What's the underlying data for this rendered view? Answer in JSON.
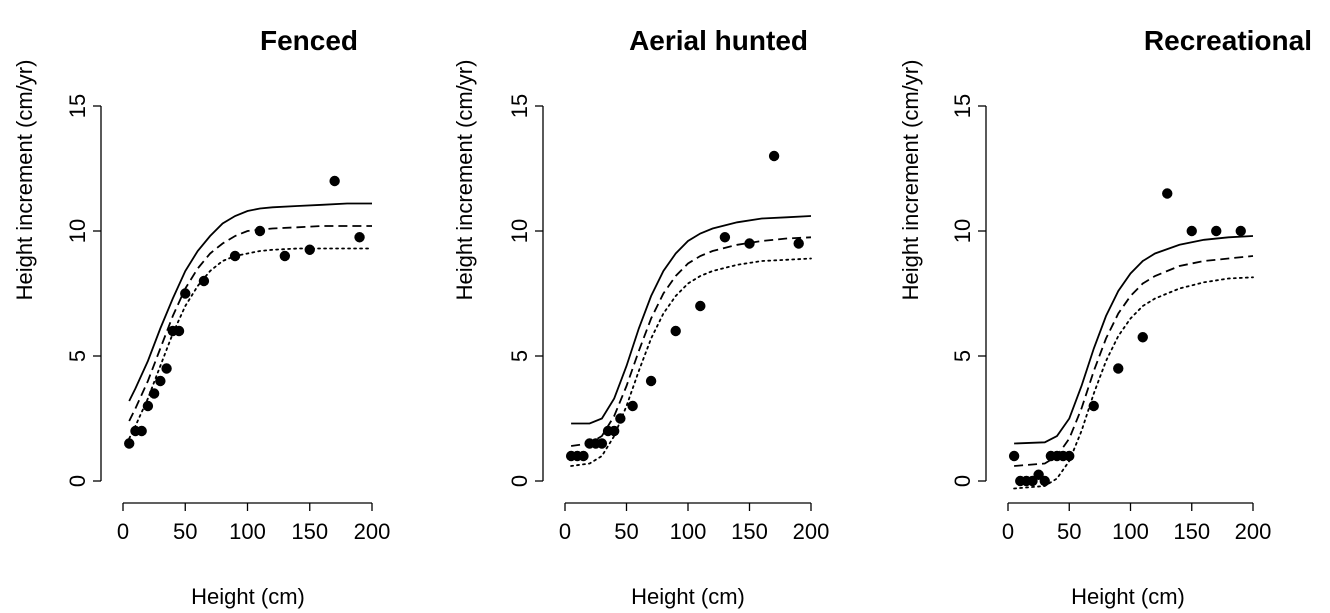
{
  "chart_data": [
    {
      "type": "scatter",
      "title": "Fenced",
      "xlabel": "Height (cm)",
      "ylabel": "Height increment (cm/yr)",
      "xlim": [
        0,
        200
      ],
      "ylim": [
        0,
        15
      ],
      "xticks": [
        "0",
        "50",
        "100",
        "150",
        "200"
      ],
      "yticks": [
        "0",
        "5",
        "10",
        "15"
      ],
      "grid": false,
      "points": {
        "x": [
          5,
          10,
          15,
          20,
          25,
          30,
          35,
          40,
          45,
          50,
          65,
          90,
          110,
          130,
          150,
          170,
          190
        ],
        "y": [
          1.5,
          2.0,
          2.0,
          3.0,
          3.5,
          4.0,
          4.5,
          6.0,
          6.0,
          7.5,
          8.0,
          9.0,
          10.0,
          9.0,
          9.25,
          12.0,
          9.75
        ]
      },
      "series": [
        {
          "style": "solid",
          "x": [
            5,
            10,
            20,
            30,
            40,
            50,
            60,
            70,
            80,
            90,
            100,
            110,
            120,
            140,
            160,
            180,
            200
          ],
          "y": [
            3.2,
            3.7,
            4.8,
            6.1,
            7.3,
            8.4,
            9.2,
            9.8,
            10.3,
            10.6,
            10.8,
            10.9,
            10.95,
            11.0,
            11.05,
            11.1,
            11.1
          ]
        },
        {
          "style": "dashed",
          "x": [
            5,
            10,
            20,
            30,
            40,
            50,
            60,
            70,
            80,
            90,
            100,
            110,
            120,
            140,
            160,
            180,
            200
          ],
          "y": [
            2.4,
            2.9,
            4.0,
            5.3,
            6.6,
            7.7,
            8.5,
            9.1,
            9.5,
            9.8,
            10.0,
            10.05,
            10.1,
            10.15,
            10.2,
            10.2,
            10.2
          ]
        },
        {
          "style": "dotted",
          "x": [
            5,
            10,
            20,
            30,
            40,
            50,
            60,
            70,
            80,
            90,
            100,
            110,
            120,
            140,
            160,
            180,
            200
          ],
          "y": [
            1.7,
            2.2,
            3.3,
            4.6,
            5.9,
            7.0,
            7.8,
            8.4,
            8.8,
            9.0,
            9.1,
            9.2,
            9.25,
            9.3,
            9.3,
            9.3,
            9.3
          ]
        }
      ]
    },
    {
      "type": "scatter",
      "title": "Aerial hunted",
      "xlabel": "Height (cm)",
      "ylabel": "Height increment (cm/yr)",
      "xlim": [
        0,
        200
      ],
      "ylim": [
        0,
        15
      ],
      "xticks": [
        "0",
        "50",
        "100",
        "150",
        "200"
      ],
      "yticks": [
        "0",
        "5",
        "10",
        "15"
      ],
      "grid": false,
      "points": {
        "x": [
          5,
          10,
          15,
          20,
          25,
          30,
          35,
          40,
          45,
          55,
          70,
          90,
          110,
          130,
          150,
          170,
          190
        ],
        "y": [
          1.0,
          1.0,
          1.0,
          1.5,
          1.5,
          1.5,
          2.0,
          2.0,
          2.5,
          3.0,
          4.0,
          6.0,
          7.0,
          9.75,
          9.5,
          13.0,
          9.5
        ]
      },
      "series": [
        {
          "style": "solid",
          "x": [
            5,
            20,
            30,
            40,
            50,
            60,
            70,
            80,
            90,
            100,
            110,
            120,
            140,
            160,
            180,
            200
          ],
          "y": [
            2.3,
            2.3,
            2.5,
            3.3,
            4.6,
            6.1,
            7.4,
            8.4,
            9.1,
            9.6,
            9.9,
            10.1,
            10.35,
            10.5,
            10.55,
            10.6
          ]
        },
        {
          "style": "dashed",
          "x": [
            5,
            20,
            30,
            40,
            50,
            60,
            70,
            80,
            90,
            100,
            110,
            120,
            140,
            160,
            180,
            200
          ],
          "y": [
            1.4,
            1.5,
            1.8,
            2.6,
            3.8,
            5.2,
            6.5,
            7.5,
            8.2,
            8.7,
            9.0,
            9.2,
            9.45,
            9.6,
            9.7,
            9.75
          ]
        },
        {
          "style": "dotted",
          "x": [
            5,
            20,
            30,
            40,
            50,
            60,
            70,
            80,
            90,
            100,
            110,
            120,
            140,
            160,
            180,
            200
          ],
          "y": [
            0.6,
            0.7,
            1.0,
            1.8,
            3.0,
            4.4,
            5.7,
            6.7,
            7.4,
            7.9,
            8.2,
            8.4,
            8.65,
            8.8,
            8.85,
            8.9
          ]
        }
      ]
    },
    {
      "type": "scatter",
      "title": "Recreational",
      "xlabel": "Height (cm)",
      "ylabel": "Height increment (cm/yr)",
      "xlim": [
        0,
        200
      ],
      "ylim": [
        0,
        15
      ],
      "xticks": [
        "0",
        "50",
        "100",
        "150",
        "200"
      ],
      "yticks": [
        "0",
        "5",
        "10",
        "15"
      ],
      "grid": false,
      "points": {
        "x": [
          5,
          10,
          15,
          20,
          25,
          30,
          35,
          40,
          45,
          50,
          70,
          90,
          110,
          130,
          150,
          170,
          190
        ],
        "y": [
          1.0,
          0.0,
          0.0,
          0.0,
          0.25,
          0.0,
          1.0,
          1.0,
          1.0,
          1.0,
          3.0,
          4.5,
          5.75,
          11.5,
          10.0,
          10.0,
          10.0
        ]
      },
      "series": [
        {
          "style": "solid",
          "x": [
            5,
            30,
            40,
            50,
            60,
            70,
            80,
            90,
            100,
            110,
            120,
            140,
            160,
            180,
            200
          ],
          "y": [
            1.5,
            1.55,
            1.8,
            2.5,
            3.8,
            5.3,
            6.6,
            7.6,
            8.3,
            8.8,
            9.1,
            9.45,
            9.65,
            9.75,
            9.8
          ]
        },
        {
          "style": "dashed",
          "x": [
            5,
            30,
            40,
            50,
            60,
            70,
            80,
            90,
            100,
            110,
            120,
            140,
            160,
            180,
            200
          ],
          "y": [
            0.6,
            0.7,
            1.0,
            1.7,
            2.9,
            4.4,
            5.7,
            6.7,
            7.4,
            7.9,
            8.2,
            8.6,
            8.8,
            8.9,
            9.0
          ]
        },
        {
          "style": "dotted",
          "x": [
            5,
            30,
            40,
            50,
            60,
            70,
            80,
            90,
            100,
            110,
            120,
            140,
            160,
            180,
            200
          ],
          "y": [
            -0.3,
            -0.2,
            0.1,
            0.8,
            2.0,
            3.5,
            4.8,
            5.8,
            6.5,
            7.0,
            7.3,
            7.7,
            7.95,
            8.1,
            8.15
          ]
        }
      ]
    }
  ]
}
